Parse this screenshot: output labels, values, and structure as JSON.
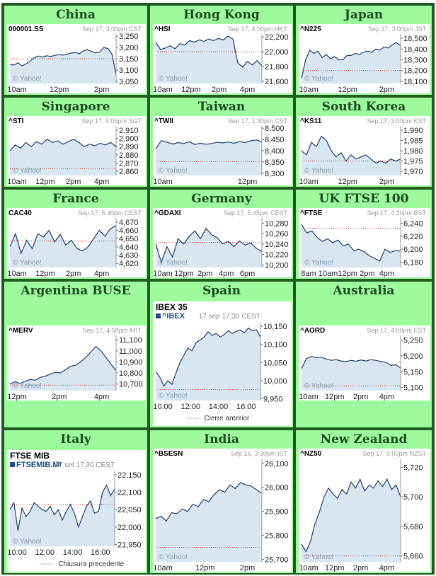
{
  "grid": [
    {
      "region": "China",
      "ticker": "000001.SS",
      "timestamp": "Sep 17, 3:00pm CST"
    },
    {
      "region": "Hong Kong",
      "ticker": "^HSI",
      "timestamp": "Sep 17, 4:00pm HKT"
    },
    {
      "region": "Japan",
      "ticker": "^N225",
      "timestamp": "Sep 17, 3:00pm JST"
    },
    {
      "region": "Singapore",
      "ticker": "^STI",
      "timestamp": "Sep 17, 5:06pm SGT"
    },
    {
      "region": "Taiwan",
      "ticker": "^TWII",
      "timestamp": "Sep 17, 1:30pm CST"
    },
    {
      "region": "South Korea",
      "ticker": "^KS11",
      "timestamp": "Sep 17, 3:00pm KST"
    },
    {
      "region": "France",
      "ticker": "CAC40",
      "timestamp": "Sep 17, 5:30pm CEST"
    },
    {
      "region": "Germany",
      "ticker": "^GDAXI",
      "timestamp": "Sep 17, 5:45pm CEST"
    },
    {
      "region": "UK FTSE 100",
      "ticker": "^FTSE",
      "timestamp": "Sep 17, 4:30pm BST"
    },
    {
      "region": "Argentina BUSE",
      "ticker": "^MERV",
      "timestamp": "Sep 17, 4:58pm ART"
    },
    {
      "region": "Spain",
      "ticker": "^IBEX",
      "timestamp": "17 sep 17:30 CEST",
      "big_title": "IBEX 35",
      "legend": "Cierre anterior"
    },
    {
      "region": "Australia",
      "ticker": "^AORD",
      "timestamp": "Sep 17, 4:00pm EST"
    },
    {
      "region": "Italy",
      "ticker": "FTSEMIB.MI",
      "timestamp": "17 set 17:30 CEST",
      "big_title": "FTSE MIB",
      "legend": "Chiusura precedente"
    },
    {
      "region": "India",
      "ticker": "^BSESN",
      "timestamp": "Sep 16, 3:30pm IST"
    },
    {
      "region": "New Zealand",
      "ticker": "^NZ50",
      "timestamp": "Sep 17, 5:00pm NZST"
    }
  ],
  "watermark": "© Yahoo!",
  "colors": {
    "fill": "#d8e6f2",
    "line": "#1e3f6b",
    "prev_close": "#c0392b",
    "cell_bg": "#9dfa9d",
    "border": "#1f5a1f",
    "title": "#1f4a1f"
  },
  "chart_data": [
    {
      "type": "area",
      "title": "000001.SS",
      "x_ticks": [
        "10am",
        "12pm",
        "2pm"
      ],
      "y_ticks": [
        3250,
        3200,
        3150,
        3100,
        3050
      ],
      "ylim": [
        3040,
        3260
      ],
      "prev_close": 3150,
      "values": [
        3125,
        3122,
        3132,
        3118,
        3128,
        3140,
        3155,
        3162,
        3158,
        3163,
        3160,
        3165,
        3168,
        3166,
        3170,
        3175,
        3178,
        3172,
        3185,
        3190,
        3182,
        3176,
        3180,
        3200,
        3195,
        3170,
        3080
      ]
    },
    {
      "type": "area",
      "title": "^HSI",
      "x_ticks": [
        "10am",
        "12pm",
        "2pm",
        "4pm"
      ],
      "y_ticks": [
        22200,
        22000,
        21800,
        21600
      ],
      "ylim": [
        21570,
        22240
      ],
      "prev_close": 22000,
      "values": [
        22130,
        22030,
        22050,
        22080,
        22040,
        22110,
        22090,
        22150,
        22130,
        22160,
        22140,
        22170,
        22150,
        22180,
        22160,
        22210,
        22170,
        21850,
        21790,
        21870,
        21820,
        21880,
        21810
      ]
    },
    {
      "type": "area",
      "title": "^N225",
      "x_ticks": [
        "10am",
        "12pm",
        "2pm"
      ],
      "y_ticks": [
        18500,
        18400,
        18300,
        18200,
        18100
      ],
      "ylim": [
        18080,
        18540
      ],
      "prev_close": 18200,
      "values": [
        18130,
        18300,
        18390,
        18360,
        18380,
        18320,
        18350,
        18310,
        18330,
        18300,
        18300,
        18340,
        18340,
        18360,
        18350,
        18370,
        18380,
        18370,
        18400,
        18390,
        18420,
        18410,
        18440,
        18460,
        18430
      ]
    },
    {
      "type": "area",
      "title": "^STI",
      "x_ticks": [
        "10am",
        "12pm",
        "2pm",
        "4pm"
      ],
      "y_ticks": [
        2910,
        2900,
        2890,
        2880,
        2870,
        2860
      ],
      "ylim": [
        2855,
        2915
      ],
      "prev_close": 2863,
      "values": [
        2885,
        2892,
        2888,
        2895,
        2890,
        2896,
        2893,
        2899,
        2895,
        2897,
        2893,
        2896,
        2899,
        2895,
        2890,
        2893,
        2891,
        2894,
        2892,
        2895,
        2890
      ]
    },
    {
      "type": "area",
      "title": "^TWII",
      "x_ticks": [
        "10am",
        "12pm"
      ],
      "y_ticks": [
        8500,
        8450,
        8400,
        8350,
        8300
      ],
      "ylim": [
        8290,
        8510
      ],
      "prev_close": 8352,
      "values": [
        8408,
        8445,
        8438,
        8430,
        8436,
        8432,
        8440,
        8428,
        8433,
        8429,
        8432,
        8437,
        8435,
        8439,
        8433,
        8441,
        8436,
        8444,
        8448,
        8440
      ]
    },
    {
      "type": "area",
      "title": "^KS11",
      "x_ticks": [
        "10am",
        "12pm",
        "2pm"
      ],
      "y_ticks": [
        1990,
        1985,
        1980,
        1975,
        1970
      ],
      "ylim": [
        1968,
        1992
      ],
      "prev_close": 1975,
      "values": [
        1980,
        1978,
        1984,
        1982,
        1987,
        1985,
        1980,
        1977,
        1979,
        1975,
        1978,
        1976,
        1977,
        1978,
        1976,
        1974,
        1975,
        1974,
        1976,
        1975,
        1976
      ]
    },
    {
      "type": "area",
      "title": "CAC40",
      "x_ticks": [
        "10am",
        "12pm",
        "2pm",
        "4pm"
      ],
      "y_ticks": [
        4670,
        4660,
        4650,
        4640,
        4630,
        4620
      ],
      "ylim": [
        4615,
        4675
      ],
      "prev_close": 4647,
      "values": [
        4640,
        4656,
        4632,
        4648,
        4638,
        4656,
        4652,
        4660,
        4646,
        4655,
        4642,
        4648,
        4638,
        4635,
        4640,
        4650,
        4660,
        4653,
        4662,
        4666
      ]
    },
    {
      "type": "area",
      "title": "^GDAXI",
      "x_ticks": [
        "10am",
        "12pm",
        "2pm",
        "4pm",
        "6pm"
      ],
      "y_ticks": [
        10280,
        10260,
        10240,
        10220,
        10200
      ],
      "ylim": [
        10195,
        10290
      ],
      "prev_close": 10243,
      "values": [
        10240,
        10205,
        10235,
        10215,
        10250,
        10240,
        10255,
        10265,
        10250,
        10270,
        10258,
        10252,
        10240,
        10245,
        10235,
        10246,
        10238,
        10242,
        10232,
        10225
      ]
    },
    {
      "type": "area",
      "title": "^FTSE",
      "x_ticks": [
        "8am",
        "10am",
        "12pm",
        "2pm",
        "4pm"
      ],
      "y_ticks": [
        6240,
        6220,
        6200,
        6180
      ],
      "ylim": [
        6172,
        6248
      ],
      "prev_close": 6232,
      "values": [
        6238,
        6225,
        6228,
        6218,
        6212,
        6216,
        6210,
        6214,
        6205,
        6208,
        6198,
        6200,
        6196,
        6190,
        6186,
        6182,
        6200,
        6195,
        6198,
        6197
      ]
    },
    {
      "type": "area",
      "title": "^MERV",
      "x_ticks": [
        "12pm",
        "2pm",
        "4pm"
      ],
      "y_ticks": [
        11100,
        11000,
        10900,
        10800,
        10700
      ],
      "ylim": [
        10640,
        11140
      ],
      "prev_close": 10690,
      "values": [
        10700,
        10720,
        10705,
        10725,
        10740,
        10735,
        10760,
        10770,
        10790,
        10805,
        10800,
        10830,
        10860,
        10870,
        10900,
        10940,
        10990,
        11040,
        11000,
        10940,
        10880,
        10820
      ]
    },
    {
      "type": "area",
      "title": "IBEX 35",
      "x_ticks": [
        "10:00",
        "12:00",
        "14:00",
        "16:00"
      ],
      "y_ticks": [
        10150,
        10100,
        10050,
        10000,
        9950
      ],
      "ylim": [
        9945,
        10160
      ],
      "prev_close": 9975,
      "values": [
        10025,
        10010,
        9985,
        10000,
        9990,
        10020,
        10050,
        10070,
        10090,
        10082,
        10105,
        10112,
        10120,
        10135,
        10125,
        10130,
        10120,
        10128,
        10138,
        10130,
        10136,
        10140,
        10132,
        10145,
        10138,
        10140,
        10120
      ]
    },
    {
      "type": "area",
      "title": "^AORD",
      "x_ticks": [
        "10am",
        "12pm",
        "2pm",
        "4pm"
      ],
      "y_ticks": [
        5250,
        5200,
        5150,
        5100
      ],
      "ylim": [
        5090,
        5265
      ],
      "prev_close": 5105,
      "values": [
        5160,
        5192,
        5198,
        5195,
        5196,
        5190,
        5186,
        5188,
        5184,
        5182,
        5186,
        5183,
        5187,
        5184,
        5188,
        5186,
        5182,
        5180,
        5170,
        5172,
        5162
      ]
    },
    {
      "type": "area",
      "title": "FTSE MIB",
      "x_ticks": [
        "10:00",
        "12:00",
        "14:00",
        "16:00"
      ],
      "y_ticks": [
        22150,
        22100,
        22050,
        22000,
        21950
      ],
      "ylim": [
        21945,
        22160
      ],
      "prev_close": 22065,
      "values": [
        22050,
        22070,
        21990,
        22055,
        22030,
        22045,
        22070,
        22060,
        22050,
        22045,
        22060,
        22035,
        22050,
        22020,
        22045,
        22065,
        22040,
        22000,
        22030,
        22060,
        22075,
        22040,
        22045,
        22100,
        22120,
        22090,
        22110
      ]
    },
    {
      "type": "area",
      "title": "^BSESN",
      "x_ticks": [
        "10am",
        "12pm",
        "2pm"
      ],
      "y_ticks": [
        26100,
        26000,
        25900,
        25800,
        25700
      ],
      "ylim": [
        25690,
        26120
      ],
      "prev_close": 25750,
      "values": [
        25870,
        25880,
        25860,
        25895,
        25890,
        25910,
        25900,
        25930,
        25920,
        25950,
        25940,
        25970,
        25990,
        25980,
        26010,
        25995,
        26020,
        26010,
        26005,
        25990,
        25975
      ]
    },
    {
      "type": "area",
      "title": "^NZ50",
      "x_ticks": [
        "10am",
        "12pm",
        "2pm",
        "4pm"
      ],
      "y_ticks": [
        5720,
        5700,
        5680,
        5660
      ],
      "ylim": [
        5656,
        5726
      ],
      "prev_close": 5660,
      "values": [
        5668,
        5663,
        5670,
        5682,
        5690,
        5700,
        5706,
        5702,
        5699,
        5705,
        5702,
        5710,
        5706,
        5712,
        5704,
        5708,
        5706,
        5711,
        5707,
        5712,
        5705,
        5708,
        5700
      ]
    }
  ]
}
